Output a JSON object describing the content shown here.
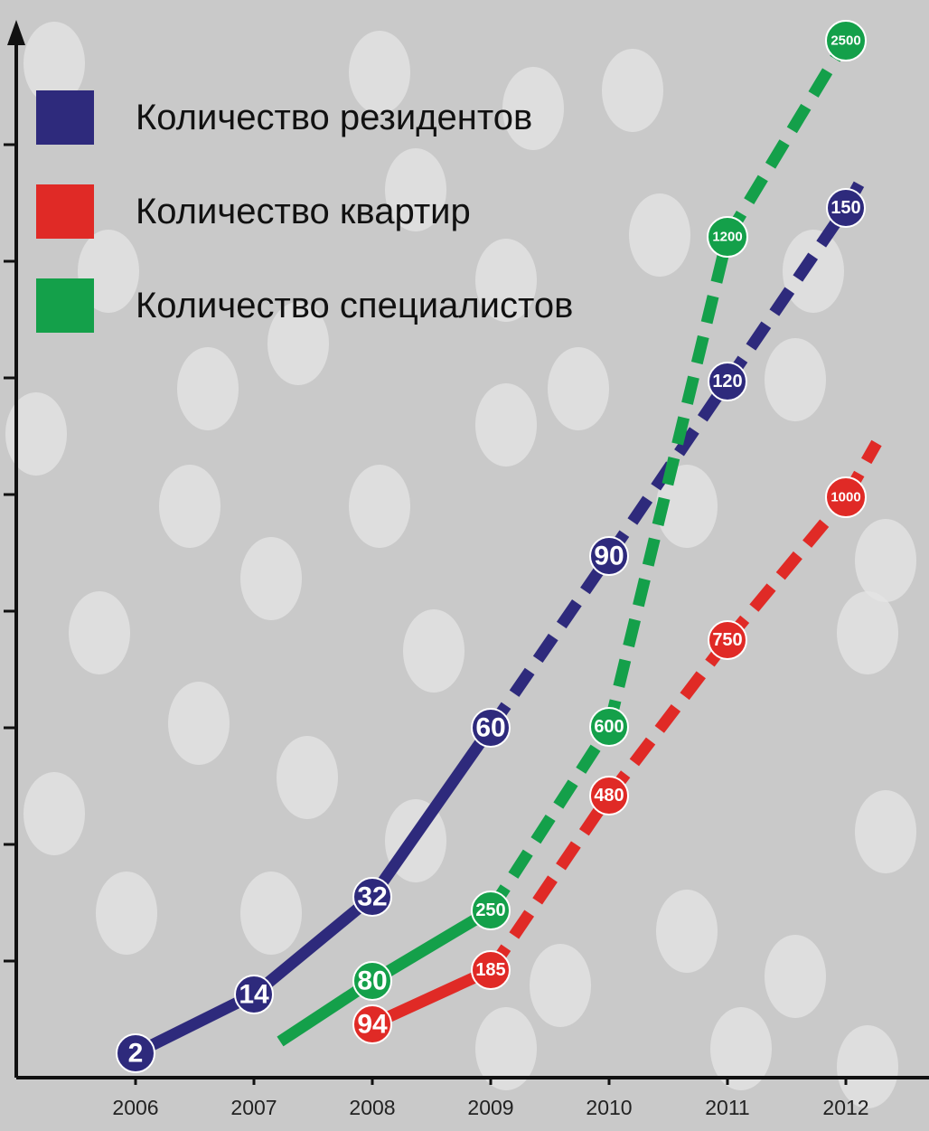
{
  "colors": {
    "background": "#c9c9c9",
    "residents": "#2e2a7c",
    "apartments": "#e02a26",
    "specialists": "#14a04a",
    "axis": "#111111"
  },
  "chart_data": {
    "type": "line",
    "title": "",
    "xlabel": "",
    "ylabel": "",
    "x": [
      "2006",
      "2007",
      "2008",
      "2009",
      "2010",
      "2011",
      "2012"
    ],
    "grid": false,
    "legend_position": "top-left",
    "series": [
      {
        "name": "Количество резидентов",
        "color": "#2e2a7c",
        "points": [
          {
            "x": "2006",
            "y": 2,
            "label": "2"
          },
          {
            "x": "2007",
            "y": 14,
            "label": "14"
          },
          {
            "x": "2008",
            "y": 32,
            "label": "32"
          },
          {
            "x": "2009",
            "y": 60,
            "label": "60"
          },
          {
            "x": "2010",
            "y": 90,
            "label": "90"
          },
          {
            "x": "2011",
            "y": 120,
            "label": "120"
          },
          {
            "x": "2012",
            "y": 150,
            "label": "150"
          }
        ],
        "dashed_from": "2009"
      },
      {
        "name": "Количество квартир",
        "color": "#e02a26",
        "points": [
          {
            "x": "2008",
            "y": 94,
            "label": "94"
          },
          {
            "x": "2009",
            "y": 185,
            "label": "185"
          },
          {
            "x": "2010",
            "y": 480,
            "label": "480"
          },
          {
            "x": "2011",
            "y": 750,
            "label": "750"
          },
          {
            "x": "2012",
            "y": 1000,
            "label": "1000"
          }
        ],
        "dashed_from": "2009"
      },
      {
        "name": "Количество специалистов",
        "color": "#14a04a",
        "points": [
          {
            "x": "2008",
            "y": 80,
            "label": "80"
          },
          {
            "x": "2009",
            "y": 250,
            "label": "250"
          },
          {
            "x": "2010",
            "y": 600,
            "label": "600"
          },
          {
            "x": "2011",
            "y": 1200,
            "label": "1200"
          },
          {
            "x": "2012",
            "y": 2500,
            "label": "2500"
          }
        ],
        "dashed_from": "2009"
      }
    ]
  }
}
